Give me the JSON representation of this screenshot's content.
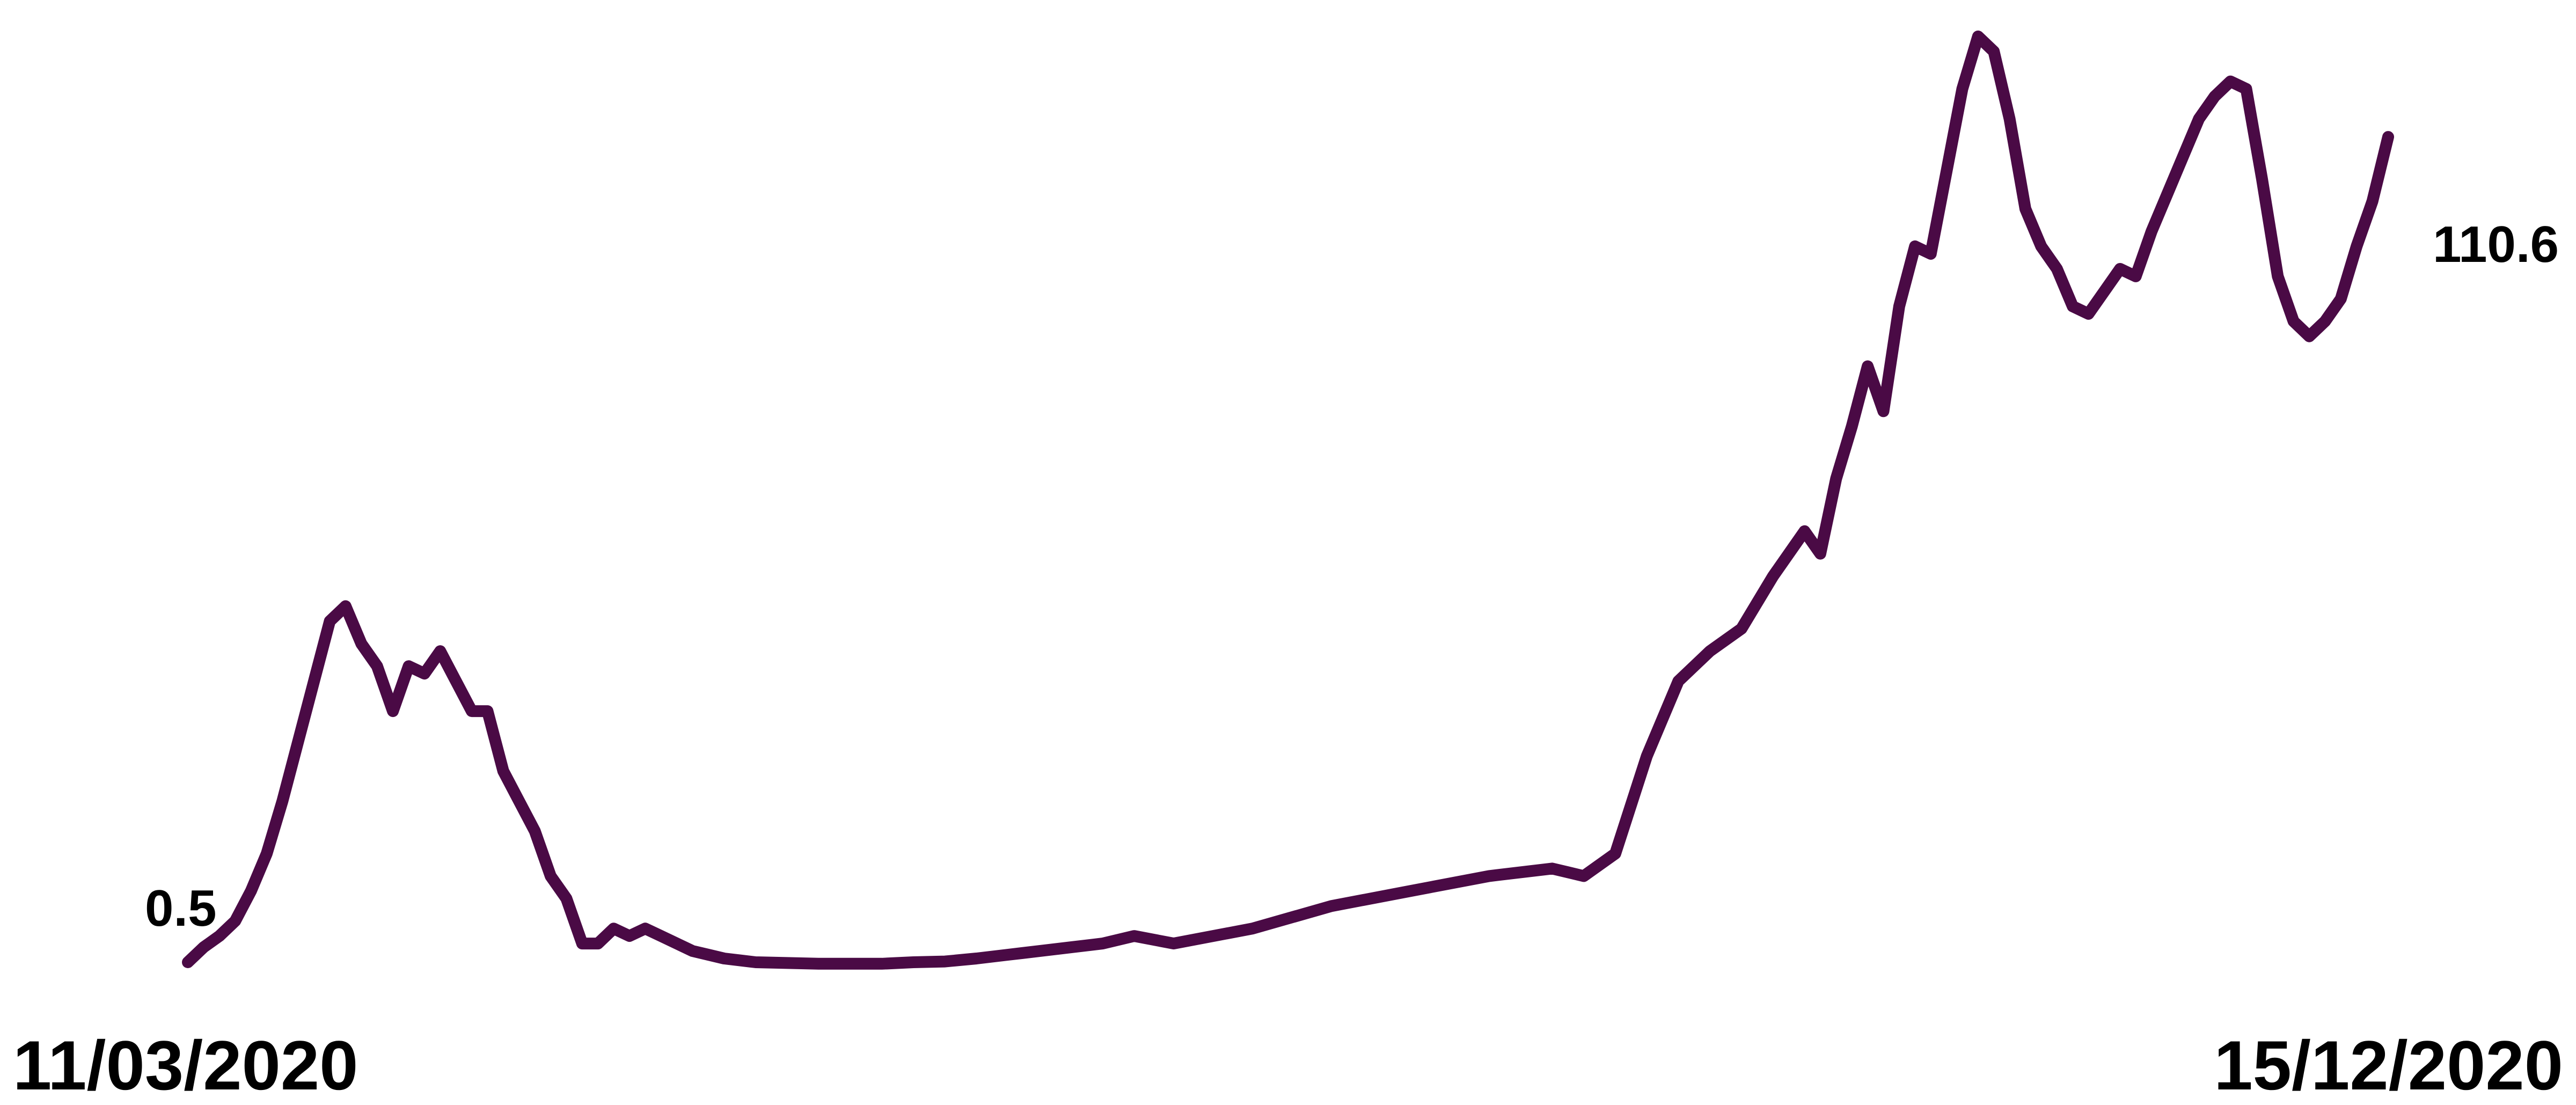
{
  "chart_data": {
    "type": "line",
    "title": "",
    "xlabel": "",
    "ylabel": "",
    "x_start_label": "11/03/2020",
    "x_end_label": "15/12/2020",
    "start_value_label": "0.5",
    "end_value_label": "110.6",
    "colors": {
      "line": "#4a0a45"
    },
    "grid": false,
    "ylim": [
      0,
      126
    ],
    "series": [
      {
        "x": [
          "2020-03-11",
          "2020-03-13",
          "2020-03-15",
          "2020-03-17",
          "2020-03-19",
          "2020-03-21",
          "2020-03-23",
          "2020-03-25",
          "2020-03-27",
          "2020-03-29",
          "2020-03-31",
          "2020-04-02",
          "2020-04-04",
          "2020-04-06",
          "2020-04-08",
          "2020-04-10",
          "2020-04-12",
          "2020-04-14",
          "2020-04-16",
          "2020-04-18",
          "2020-04-20",
          "2020-04-22",
          "2020-04-24",
          "2020-04-26",
          "2020-04-28",
          "2020-04-30",
          "2020-05-02",
          "2020-05-04",
          "2020-05-06",
          "2020-05-08",
          "2020-05-10",
          "2020-05-12",
          "2020-05-14",
          "2020-05-16",
          "2020-05-18",
          "2020-05-22",
          "2020-05-26",
          "2020-05-30",
          "2020-06-03",
          "2020-06-07",
          "2020-06-11",
          "2020-06-15",
          "2020-06-19",
          "2020-06-23",
          "2020-06-27",
          "2020-07-01",
          "2020-07-05",
          "2020-07-09",
          "2020-07-14",
          "2020-07-24",
          "2020-08-03",
          "2020-08-13",
          "2020-08-23",
          "2020-08-31",
          "2020-09-04",
          "2020-09-08",
          "2020-09-12",
          "2020-09-16",
          "2020-09-20",
          "2020-09-24",
          "2020-09-28",
          "2020-10-02",
          "2020-10-04",
          "2020-10-06",
          "2020-10-08",
          "2020-10-10",
          "2020-10-12",
          "2020-10-14",
          "2020-10-16",
          "2020-10-18",
          "2020-10-20",
          "2020-10-22",
          "2020-10-24",
          "2020-10-26",
          "2020-10-28",
          "2020-10-30",
          "2020-11-01",
          "2020-11-03",
          "2020-11-05",
          "2020-11-07",
          "2020-11-09",
          "2020-11-11",
          "2020-11-13",
          "2020-11-15",
          "2020-11-17",
          "2020-11-19",
          "2020-11-21",
          "2020-11-23",
          "2020-11-25",
          "2020-11-27",
          "2020-11-29",
          "2020-12-01",
          "2020-12-03",
          "2020-12-05",
          "2020-12-07",
          "2020-12-09",
          "2020-12-11",
          "2020-12-13",
          "2020-12-15"
        ],
        "y": [
          0.5,
          2.5,
          4,
          6,
          10,
          15,
          22,
          30,
          38,
          46,
          48,
          43,
          40,
          34,
          40,
          39,
          42,
          38,
          34,
          34,
          26,
          22,
          18,
          12,
          9,
          3,
          3,
          5,
          4,
          5,
          4,
          3,
          2,
          1.5,
          1,
          0.5,
          0.4,
          0.3,
          0.3,
          0.3,
          0.5,
          0.6,
          1,
          1.5,
          2,
          2.5,
          3,
          4,
          3,
          5,
          8,
          10,
          12,
          13,
          12,
          15,
          28,
          38,
          42,
          45,
          52,
          58,
          55,
          65,
          72,
          80,
          74,
          88,
          96,
          95,
          106,
          117,
          124,
          122,
          113,
          101,
          96,
          93,
          88,
          87,
          90,
          93,
          92,
          98,
          103,
          108,
          113,
          116,
          118,
          117,
          105,
          92,
          86,
          84,
          86,
          89,
          96,
          102,
          110.6
        ]
      }
    ]
  }
}
